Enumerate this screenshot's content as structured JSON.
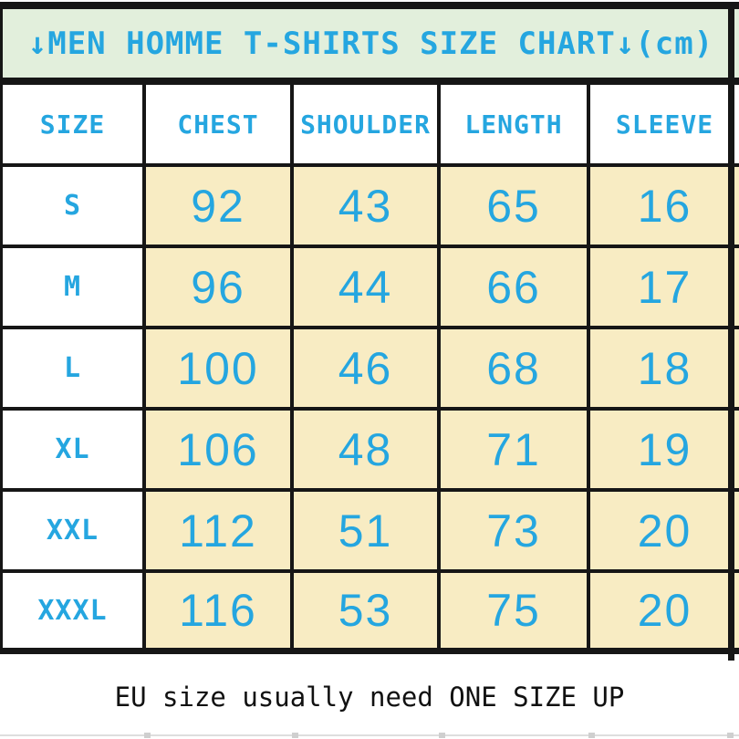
{
  "title": {
    "text": "↓MEN HOMME T-SHIRTS SIZE CHART↓(cm)"
  },
  "footer": {
    "note": "EU size usually need ONE SIZE UP"
  },
  "colors": {
    "accent_blue": "#25a6e0",
    "header_green": "#e2efdc",
    "cell_wheat": "#f8ecc3",
    "border_black": "#161616"
  },
  "chart_data": {
    "type": "table",
    "title": "MEN HOMME T-SHIRTS SIZE CHART (cm)",
    "unit": "cm",
    "columns": [
      "SIZE",
      "CHEST",
      "SHOULDER",
      "LENGTH",
      "SLEEVE"
    ],
    "rows": [
      [
        "S",
        "92",
        "43",
        "65",
        "16"
      ],
      [
        "M",
        "96",
        "44",
        "66",
        "17"
      ],
      [
        "L",
        "100",
        "46",
        "68",
        "18"
      ],
      [
        "XL",
        "106",
        "48",
        "71",
        "19"
      ],
      [
        "XXL",
        "112",
        "51",
        "73",
        "20"
      ],
      [
        "XXXL",
        "116",
        "53",
        "75",
        "20"
      ]
    ],
    "note": "EU size usually need ONE SIZE UP"
  }
}
